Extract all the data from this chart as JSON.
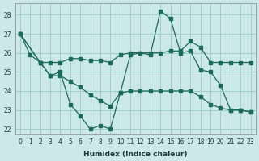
{
  "xlabel": "Humidex (Indice chaleur)",
  "background_color": "#cce8e8",
  "grid_color": "#9ecece",
  "line_color": "#1a6b5a",
  "xlim": [
    -0.5,
    23.5
  ],
  "ylim": [
    21.7,
    28.6
  ],
  "yticks": [
    22,
    23,
    24,
    25,
    26,
    27,
    28
  ],
  "xticks": [
    0,
    1,
    2,
    3,
    4,
    5,
    6,
    7,
    8,
    9,
    10,
    11,
    12,
    13,
    14,
    15,
    16,
    17,
    18,
    19,
    20,
    21,
    22,
    23
  ],
  "line1_x": [
    0,
    1,
    2,
    3,
    4,
    5,
    6,
    7,
    8,
    9,
    10,
    11,
    12,
    13,
    14,
    15,
    16,
    17,
    18,
    19,
    20,
    21,
    22,
    23
  ],
  "line1_y": [
    27.0,
    25.9,
    25.5,
    24.8,
    25.0,
    23.3,
    22.7,
    22.0,
    22.2,
    22.0,
    23.9,
    25.9,
    26.0,
    25.9,
    28.2,
    27.8,
    26.0,
    26.1,
    25.1,
    25.0,
    24.3,
    23.0,
    23.0,
    22.9
  ],
  "line2_x": [
    0,
    2,
    3,
    4,
    5,
    6,
    7,
    8,
    9,
    10,
    11,
    12,
    13,
    14,
    15,
    16,
    17,
    18,
    19,
    20,
    21,
    22,
    23
  ],
  "line2_y": [
    27.0,
    25.5,
    25.5,
    25.5,
    25.7,
    25.7,
    25.6,
    25.6,
    25.5,
    25.9,
    26.0,
    26.0,
    26.0,
    26.0,
    26.1,
    26.1,
    26.6,
    26.3,
    25.5,
    25.5,
    25.5,
    25.5,
    25.5
  ],
  "line3_x": [
    0,
    2,
    3,
    4,
    5,
    6,
    7,
    8,
    9,
    10,
    11,
    12,
    13,
    14,
    15,
    16,
    17,
    18,
    19,
    20,
    21,
    22,
    23
  ],
  "line3_y": [
    27.0,
    25.5,
    24.8,
    24.8,
    24.5,
    24.2,
    23.8,
    23.5,
    23.2,
    23.9,
    24.0,
    24.0,
    24.0,
    24.0,
    24.0,
    24.0,
    24.0,
    23.7,
    23.3,
    23.1,
    23.0,
    23.0,
    22.9
  ]
}
